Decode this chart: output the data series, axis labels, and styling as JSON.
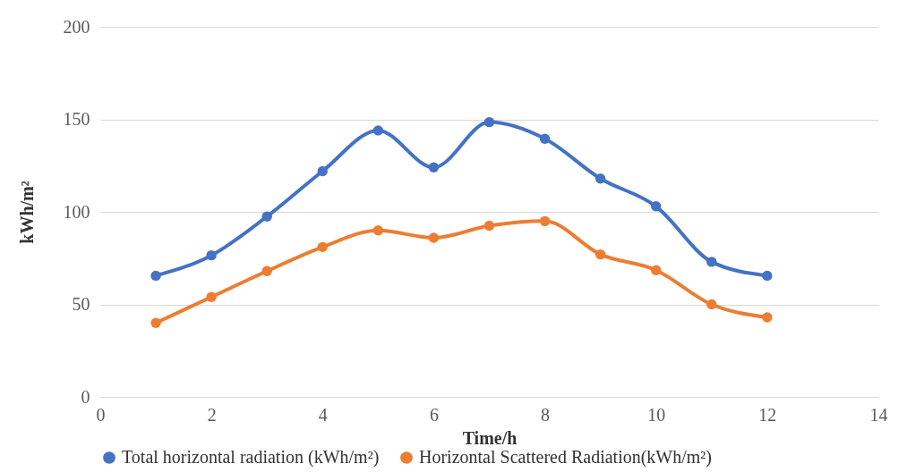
{
  "chart_data": {
    "type": "line",
    "xlabel": "Time/h",
    "ylabel": "kWh/m²",
    "x": [
      1,
      2,
      3,
      4,
      5,
      6,
      7,
      8,
      9,
      10,
      11,
      12
    ],
    "series": [
      {
        "name": "Total horizontal radiation (kWh/m²)",
        "color": "#4472c4",
        "values": [
          65.5,
          76.5,
          97.5,
          122,
          144,
          124,
          148.5,
          139.5,
          118,
          103,
          73,
          65.5
        ]
      },
      {
        "name": "Horizontal Scattered Radiation(kWh/m²)",
        "color": "#ed7d31",
        "values": [
          40,
          54,
          68,
          81,
          90,
          86,
          92.5,
          95,
          77,
          68.5,
          50,
          43
        ]
      }
    ],
    "xlim": [
      0,
      14
    ],
    "xticks": [
      0,
      2,
      4,
      6,
      8,
      10,
      12,
      14
    ],
    "ylim": [
      0,
      200
    ],
    "yticks": [
      0,
      50,
      100,
      150,
      200
    ],
    "grid": "y",
    "legend": "bottom",
    "marker": "circle",
    "line_style": "solid"
  }
}
